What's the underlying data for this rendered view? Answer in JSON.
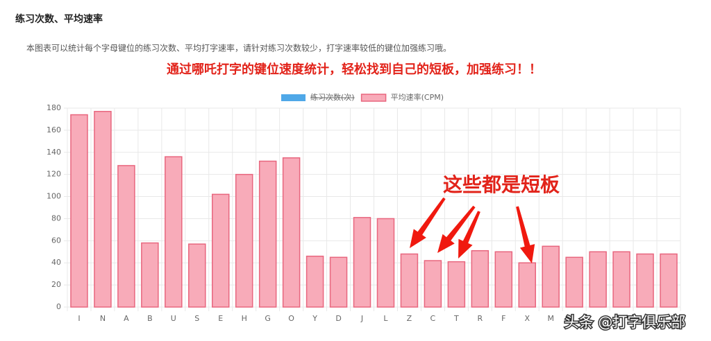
{
  "header": {
    "title": "练习次数、平均速率",
    "description": "本图表可以统计每个字母键位的练习次数、平均打字速率，请针对练习次数较少，打字速率较低的键位加强练习哦。",
    "highlight": "通过哪吒打字的键位速度统计，轻松找到自己的短板，加强练习！！"
  },
  "chart_data": {
    "type": "bar",
    "categories": [
      "I",
      "N",
      "A",
      "B",
      "U",
      "S",
      "E",
      "H",
      "G",
      "O",
      "Y",
      "D",
      "J",
      "L",
      "Z",
      "C",
      "T",
      "R",
      "F",
      "X",
      "M",
      null,
      null,
      null,
      null,
      null
    ],
    "series": [
      {
        "name": "练习次数(次)",
        "color": "#4fa8e8",
        "hidden": true
      },
      {
        "name": "平均速率(CPM)",
        "color": "#f8abb9",
        "values": [
          174,
          177,
          128,
          58,
          136,
          57,
          102,
          120,
          132,
          135,
          46,
          45,
          81,
          80,
          48,
          42,
          41,
          51,
          50,
          40,
          55,
          45,
          50,
          50,
          48,
          48
        ]
      }
    ],
    "ylim": [
      0,
      180
    ],
    "yticks": [
      0,
      20,
      40,
      60,
      80,
      100,
      120,
      140,
      160,
      180
    ],
    "grid": true,
    "annotation": "这些都是短板"
  },
  "watermark": "头条 @打字俱乐部"
}
